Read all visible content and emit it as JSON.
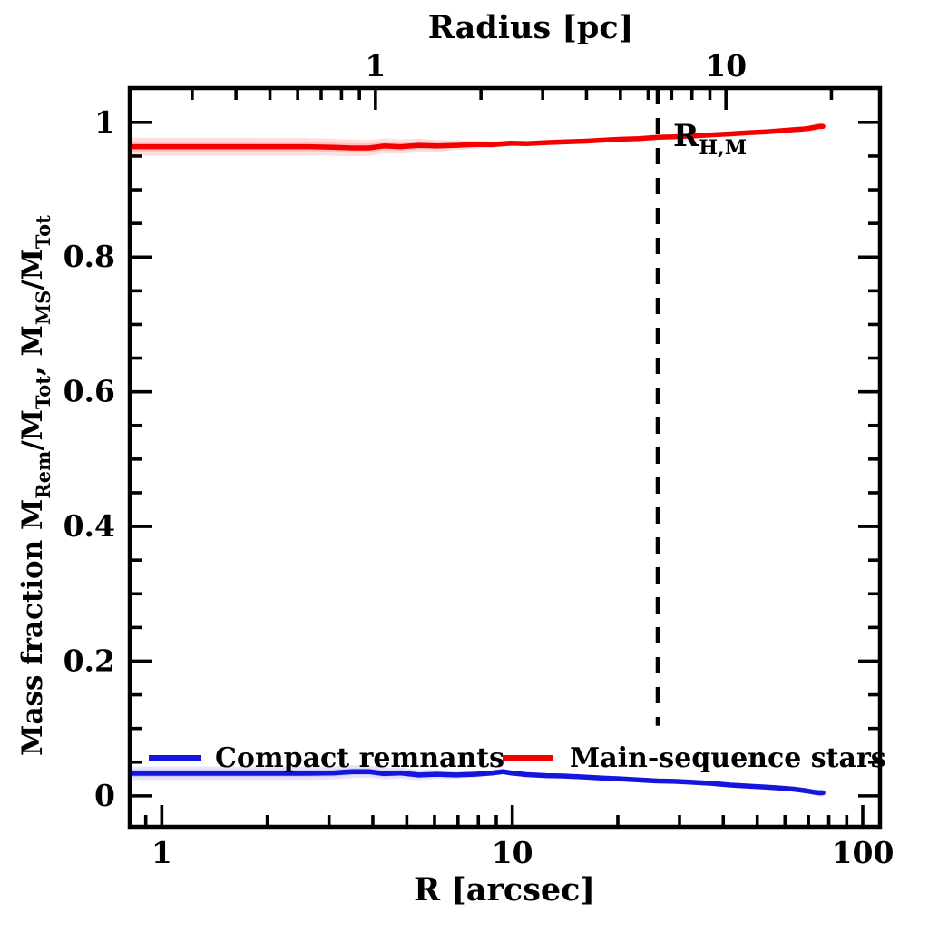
{
  "figure": {
    "background": "#ffffff",
    "frame_color": "#000000"
  },
  "chart_data": {
    "type": "line",
    "x_axis": {
      "label": "R [arcsec]",
      "scale": "log",
      "lim": [
        0.81,
        112
      ],
      "major_ticks": [
        1,
        10,
        100
      ],
      "major_labels": [
        "1",
        "10",
        "100"
      ],
      "minor_ticks": [
        0.9,
        2,
        3,
        4,
        5,
        6,
        7,
        8,
        9,
        20,
        30,
        40,
        50,
        60,
        70,
        80,
        90
      ]
    },
    "top_axis": {
      "label": "Radius [pc]",
      "scale": "log",
      "arcsec_per_pc": 4.07,
      "major_ticks": [
        1,
        10
      ],
      "major_labels": [
        "1",
        "10"
      ],
      "minor_ticks": [
        0.3,
        0.4,
        0.5,
        0.6,
        0.7,
        0.8,
        0.9,
        2,
        3,
        4,
        5,
        6,
        7,
        8,
        9,
        20
      ]
    },
    "y_axis": {
      "label_plain": "Mass fraction  M_Rem/M_Tot, M_MS/M_Tot",
      "label_parts": [
        {
          "t": "Mass fraction   "
        },
        {
          "t": "M"
        },
        {
          "t": "Rem",
          "sub": true
        },
        {
          "t": "/M"
        },
        {
          "t": "Tot",
          "sub": true
        },
        {
          "t": ", "
        },
        {
          "t": "M"
        },
        {
          "t": "MS",
          "sub": true
        },
        {
          "t": "/M"
        },
        {
          "t": "Tot",
          "sub": true
        }
      ],
      "scale": "linear",
      "lim": [
        -0.046,
        1.051
      ],
      "major_ticks": [
        0,
        0.2,
        0.4,
        0.6,
        0.8,
        1.0
      ],
      "major_labels": [
        "0",
        "0.2",
        "0.4",
        "0.6",
        "0.8",
        "1"
      ],
      "minor_step": 0.05
    },
    "series": [
      {
        "name": "Main-sequence stars",
        "slug": "main-sequence-stars",
        "color": "#f50000",
        "band_color": "rgba(255,0,0,0.13)",
        "points": [
          [
            0.81,
            0.964
          ],
          [
            1.2,
            0.964
          ],
          [
            1.8,
            0.964
          ],
          [
            2.6,
            0.964
          ],
          [
            3.1,
            0.963
          ],
          [
            3.5,
            0.962
          ],
          [
            3.9,
            0.962
          ],
          [
            4.3,
            0.965
          ],
          [
            4.8,
            0.964
          ],
          [
            5.4,
            0.966
          ],
          [
            6.1,
            0.965
          ],
          [
            6.9,
            0.966
          ],
          [
            7.8,
            0.967
          ],
          [
            8.8,
            0.967
          ],
          [
            9.9,
            0.969
          ],
          [
            11,
            0.9685
          ],
          [
            12.5,
            0.97
          ],
          [
            14,
            0.971
          ],
          [
            16,
            0.972
          ],
          [
            18,
            0.9735
          ],
          [
            20.5,
            0.975
          ],
          [
            23,
            0.976
          ],
          [
            26,
            0.978
          ],
          [
            29,
            0.9785
          ],
          [
            33,
            0.98
          ],
          [
            37,
            0.9815
          ],
          [
            42,
            0.983
          ],
          [
            47,
            0.9845
          ],
          [
            53,
            0.986
          ],
          [
            58,
            0.9875
          ],
          [
            63,
            0.989
          ],
          [
            67,
            0.99
          ],
          [
            70,
            0.991
          ],
          [
            72.5,
            0.9925
          ],
          [
            75,
            0.994
          ],
          [
            77,
            0.994
          ]
        ],
        "band_halfwidth": [
          [
            0.81,
            0.013
          ],
          [
            2.5,
            0.013
          ],
          [
            3.5,
            0.0125
          ],
          [
            4.5,
            0.011
          ],
          [
            5.5,
            0.01
          ],
          [
            6.5,
            0.008
          ],
          [
            7.5,
            0.0065
          ],
          [
            8.5,
            0.005
          ],
          [
            10,
            0.004
          ],
          [
            12,
            0.0035
          ],
          [
            20,
            0.003
          ],
          [
            40,
            0.003
          ],
          [
            60,
            0.003
          ],
          [
            70,
            0.004
          ],
          [
            73,
            0.005
          ],
          [
            77,
            0.007
          ]
        ]
      },
      {
        "name": "Compact remnants",
        "slug": "compact-remnants",
        "color": "#1515dd",
        "band_color": "rgba(50,50,230,0.13)",
        "points": [
          [
            0.81,
            0.0335
          ],
          [
            1.2,
            0.0335
          ],
          [
            1.8,
            0.0335
          ],
          [
            2.6,
            0.0335
          ],
          [
            3.1,
            0.034
          ],
          [
            3.5,
            0.036
          ],
          [
            3.9,
            0.036
          ],
          [
            4.3,
            0.033
          ],
          [
            4.8,
            0.034
          ],
          [
            5.4,
            0.031
          ],
          [
            6.1,
            0.032
          ],
          [
            6.9,
            0.031
          ],
          [
            7.8,
            0.032
          ],
          [
            8.8,
            0.034
          ],
          [
            9.4,
            0.036
          ],
          [
            9.9,
            0.034
          ],
          [
            11,
            0.0315
          ],
          [
            12.5,
            0.03
          ],
          [
            14,
            0.0295
          ],
          [
            16,
            0.028
          ],
          [
            18,
            0.0265
          ],
          [
            20.5,
            0.025
          ],
          [
            23,
            0.0235
          ],
          [
            26,
            0.022
          ],
          [
            29,
            0.0215
          ],
          [
            33,
            0.02
          ],
          [
            37,
            0.0185
          ],
          [
            42,
            0.016
          ],
          [
            47,
            0.0145
          ],
          [
            53,
            0.013
          ],
          [
            58,
            0.0115
          ],
          [
            63,
            0.01
          ],
          [
            67,
            0.0085
          ],
          [
            70,
            0.007
          ],
          [
            72.5,
            0.0055
          ],
          [
            75,
            0.0045
          ],
          [
            77,
            0.0045
          ]
        ],
        "band_halfwidth": [
          [
            0.81,
            0.01
          ],
          [
            2.5,
            0.01
          ],
          [
            3.5,
            0.0095
          ],
          [
            4.5,
            0.0085
          ],
          [
            5.5,
            0.0075
          ],
          [
            6.5,
            0.006
          ],
          [
            7.5,
            0.005
          ],
          [
            8.5,
            0.0045
          ],
          [
            10,
            0.004
          ],
          [
            12,
            0.0035
          ],
          [
            20,
            0.003
          ],
          [
            40,
            0.0025
          ],
          [
            60,
            0.0025
          ],
          [
            70,
            0.003
          ],
          [
            73,
            0.0045
          ],
          [
            77,
            0.006
          ]
        ]
      }
    ],
    "legend": [
      {
        "label": "Compact remnants",
        "series": "compact-remnants",
        "color": "#1515dd"
      },
      {
        "label": "Main-sequence stars",
        "series": "main-sequence-stars",
        "color": "#f50000"
      }
    ],
    "annotations": {
      "dashed_line": {
        "r_arcsec": 26,
        "v_top": 1.051,
        "v_bottom": 0.104,
        "color": "#000000",
        "label_parts": [
          {
            "t": "R"
          },
          {
            "t": "H,M",
            "sub": true
          }
        ]
      }
    }
  }
}
